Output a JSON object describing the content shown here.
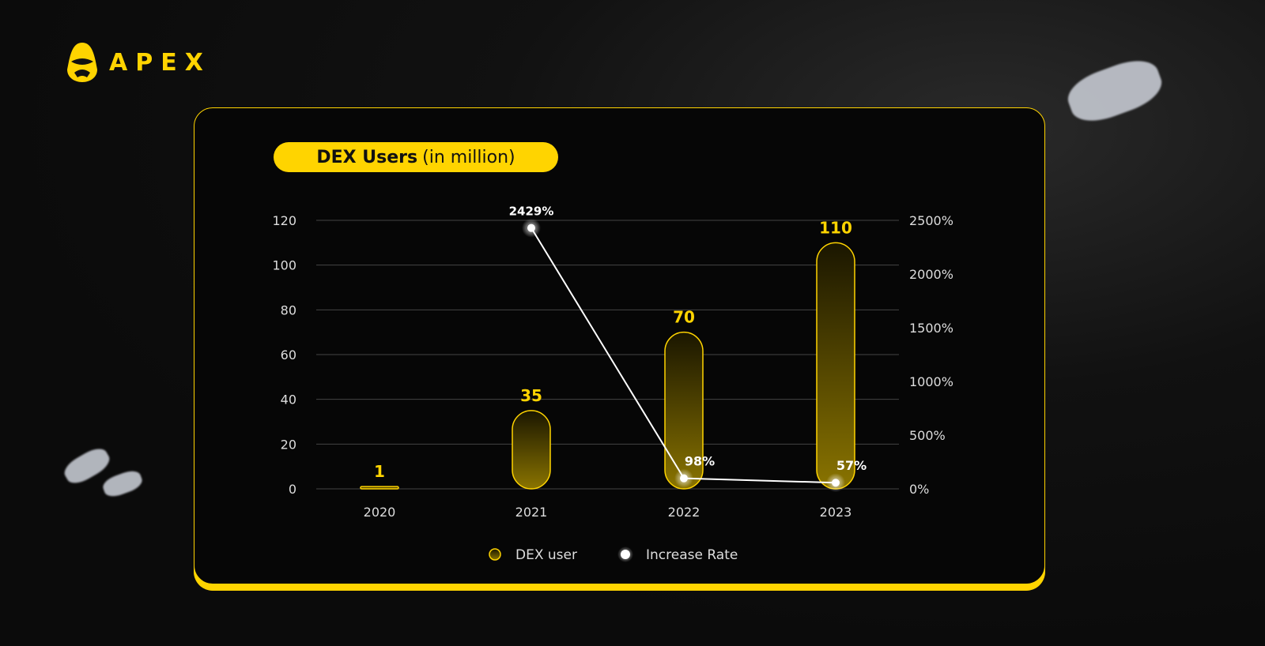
{
  "brand": {
    "name": "APEX",
    "color": "#ffd400"
  },
  "chart_data": {
    "type": "bar+line",
    "title": "DEX Users",
    "title_suffix": "(in million)",
    "categories": [
      "2020",
      "2021",
      "2022",
      "2023"
    ],
    "series": [
      {
        "name": "DEX user",
        "type": "bar",
        "axis": "left",
        "values": [
          1,
          35,
          70,
          110
        ],
        "labels": [
          "1",
          "35",
          "70",
          "110"
        ],
        "color": "#ffd400"
      },
      {
        "name": "Increase Rate",
        "type": "line",
        "axis": "right",
        "x": [
          "2021",
          "2022",
          "2023"
        ],
        "values": [
          2429,
          98,
          57
        ],
        "labels": [
          "2429%",
          "98%",
          "57%"
        ],
        "color": "#ffffff"
      }
    ],
    "y_left": {
      "ylim": [
        0,
        120
      ],
      "ticks": [
        "0",
        "20",
        "40",
        "60",
        "80",
        "100",
        "120"
      ]
    },
    "y_right": {
      "ylim": [
        0,
        2500
      ],
      "ticks": [
        "0%",
        "500%",
        "1000%",
        "1500%",
        "2000%",
        "2500%"
      ]
    },
    "grid": true,
    "legend": {
      "placement": "bottom",
      "items": [
        "DEX user",
        "Increase Rate"
      ]
    }
  }
}
